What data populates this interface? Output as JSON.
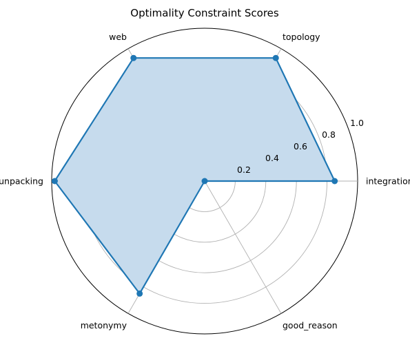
{
  "chart_data": {
    "type": "radar",
    "title": "Optimality Constraint Scores",
    "categories": [
      "integration",
      "topology",
      "web",
      "unpacking",
      "metonymy",
      "good_reason"
    ],
    "values": [
      0.85,
      0.93,
      0.93,
      0.98,
      0.85,
      0.0
    ],
    "rlim": [
      0,
      1.0
    ],
    "rticks": [
      "0.2",
      "0.4",
      "0.6",
      "0.8",
      "1.0"
    ],
    "grid": true,
    "series_color": "#1f77b4",
    "fill_color": "#c6dbed",
    "grid_color": "#b0b0b0"
  }
}
